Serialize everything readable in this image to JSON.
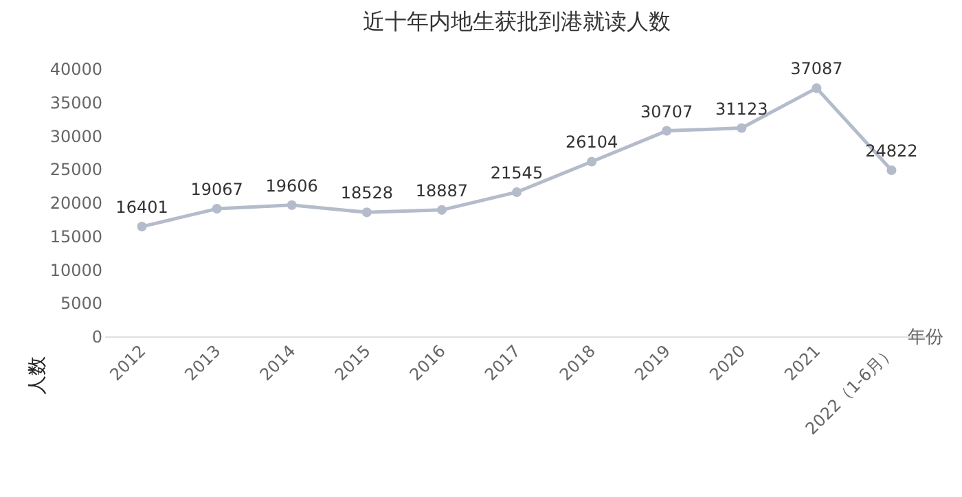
{
  "chart_data": {
    "type": "line",
    "title": "近十年内地生获批到港就读人数",
    "xlabel": "年份",
    "ylabel": "人数",
    "categories": [
      "2012",
      "2013",
      "2014",
      "2015",
      "2016",
      "2017",
      "2018",
      "2019",
      "2020",
      "2021",
      "2022（1-6月）"
    ],
    "values": [
      16401,
      19067,
      19606,
      18528,
      18887,
      21545,
      26104,
      30707,
      31123,
      37087,
      24822
    ],
    "color": "#b4bccb",
    "marker": "circle",
    "line_style": "solid",
    "data_labels": true,
    "ylim": [
      0,
      40000
    ],
    "yticks": [
      0,
      5000,
      10000,
      15000,
      20000,
      25000,
      30000,
      35000,
      40000
    ]
  }
}
